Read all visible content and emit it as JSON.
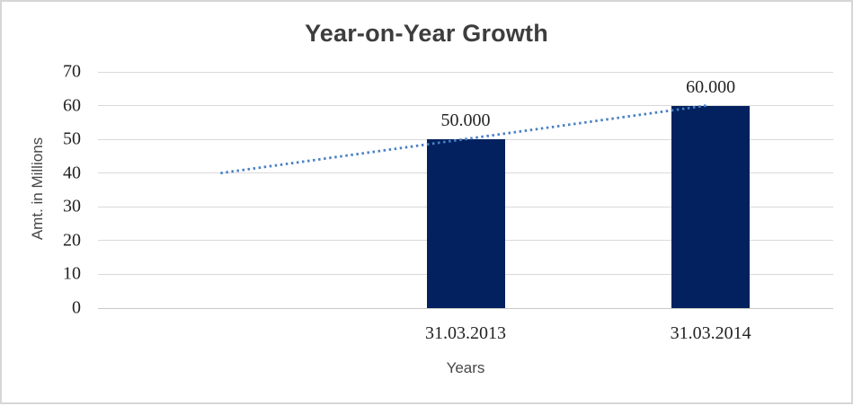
{
  "chart_data": {
    "type": "bar",
    "title": "Year-on-Year Growth",
    "xlabel": "Years",
    "ylabel": "Amt. in Millions",
    "categories": [
      "31.03.2013",
      "31.03.2014"
    ],
    "values": [
      50,
      60
    ],
    "data_labels": [
      "50.000",
      "60.000"
    ],
    "ylim": [
      0,
      70
    ],
    "yticks": [
      0,
      10,
      20,
      30,
      40,
      50,
      60,
      70
    ],
    "ytick_labels": [
      "0",
      "10",
      "20",
      "30",
      "40",
      "50",
      "60",
      "70"
    ],
    "grid": "horizontal",
    "legend": "none",
    "slot_count": 3,
    "bar_slots": [
      1,
      2
    ],
    "bar_color": "#02215e",
    "gridline_color": "#d9d9d9",
    "axis_line_color": "#c9c9c9",
    "trendline": {
      "type": "linear",
      "style": "dotted",
      "color": "#4a80c6",
      "from": {
        "slot": 0,
        "value": 40
      },
      "to": {
        "slot": 2,
        "value": 60
      }
    }
  }
}
